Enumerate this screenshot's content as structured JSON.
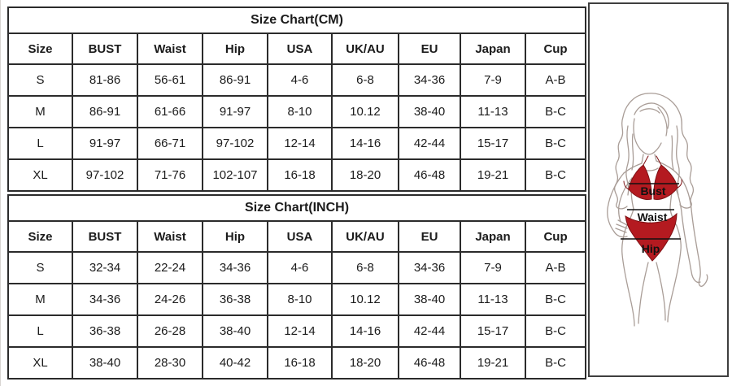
{
  "tables": [
    {
      "title": "Size Chart(CM)",
      "headers": [
        "Size",
        "BUST",
        "Waist",
        "Hip",
        "USA",
        "UK/AU",
        "EU",
        "Japan",
        "Cup"
      ],
      "rows": [
        [
          "S",
          "81-86",
          "56-61",
          "86-91",
          "4-6",
          "6-8",
          "34-36",
          "7-9",
          "A-B"
        ],
        [
          "M",
          "86-91",
          "61-66",
          "91-97",
          "8-10",
          "10.12",
          "38-40",
          "11-13",
          "B-C"
        ],
        [
          "L",
          "91-97",
          "66-71",
          "97-102",
          "12-14",
          "14-16",
          "42-44",
          "15-17",
          "B-C"
        ],
        [
          "XL",
          "97-102",
          "71-76",
          "102-107",
          "16-18",
          "18-20",
          "46-48",
          "19-21",
          "B-C"
        ]
      ]
    },
    {
      "title": "Size Chart(INCH)",
      "headers": [
        "Size",
        "BUST",
        "Waist",
        "Hip",
        "USA",
        "UK/AU",
        "EU",
        "Japan",
        "Cup"
      ],
      "rows": [
        [
          "S",
          "32-34",
          "22-24",
          "34-36",
          "4-6",
          "6-8",
          "34-36",
          "7-9",
          "A-B"
        ],
        [
          "M",
          "34-36",
          "24-26",
          "36-38",
          "8-10",
          "10.12",
          "38-40",
          "11-13",
          "B-C"
        ],
        [
          "L",
          "36-38",
          "26-28",
          "38-40",
          "12-14",
          "14-16",
          "42-44",
          "15-17",
          "B-C"
        ],
        [
          "XL",
          "38-40",
          "28-30",
          "40-42",
          "16-18",
          "18-20",
          "46-48",
          "19-21",
          "B-C"
        ]
      ]
    }
  ],
  "figure": {
    "bust_label": "Bust",
    "waist_label": "Waist",
    "hip_label": "Hip",
    "bikini_color": "#b41a20",
    "outline_color": "#a99d97",
    "measure_line_color": "#111111"
  }
}
